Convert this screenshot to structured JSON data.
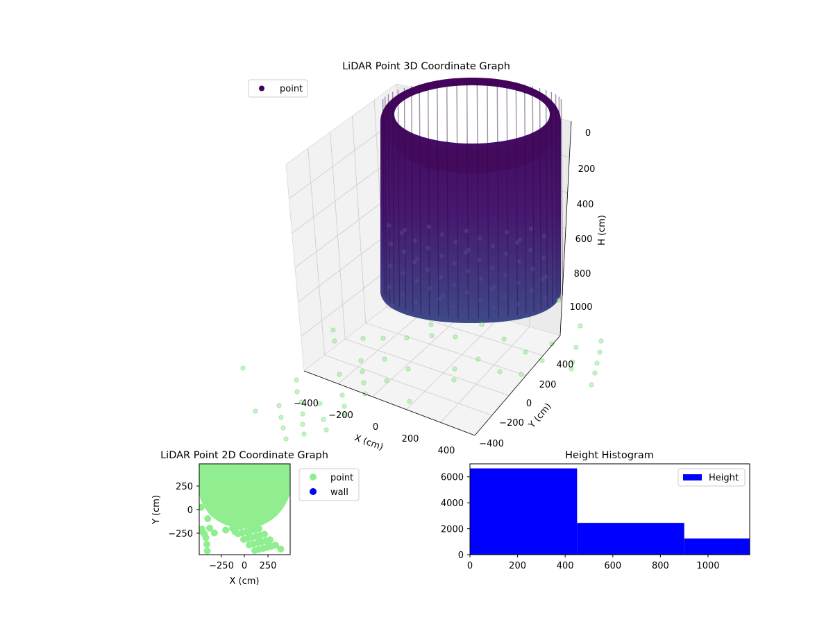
{
  "colors": {
    "point_3d_top": "#44015a",
    "point_3d_bottom": "#3e4a89",
    "floor_points": "#90ee90",
    "point_2d": "#90ee90",
    "wall_2d": "#0000ff",
    "histogram": "#0000ff"
  },
  "chart_data": [
    {
      "type": "scatter3d",
      "title": "LiDAR Point 3D Coordinate Graph",
      "xlabel": "X (cm)",
      "ylabel": "Y (cm)",
      "zlabel": "H (cm)",
      "xticks": [
        "−400",
        "−200",
        "0",
        "200",
        "400"
      ],
      "xtick_values": [
        -400,
        -200,
        0,
        200,
        400
      ],
      "yticks": [
        "−400",
        "−200",
        "0",
        "200",
        "400"
      ],
      "ytick_values": [
        -400,
        -200,
        0,
        200,
        400
      ],
      "zticks": [
        "0",
        "200",
        "400",
        "600",
        "800",
        "1000"
      ],
      "ztick_values": [
        0,
        200,
        400,
        600,
        800,
        1000
      ],
      "zlim": [
        1150,
        -50
      ],
      "z_axis_inverted": true,
      "legend": [
        "point"
      ],
      "legend_position": "upper-left",
      "grid": true,
      "series": [
        {
          "name": "point",
          "shape": "cylinder",
          "center_x": 0,
          "center_y": 0,
          "radius": 450,
          "h_min": 0,
          "h_max": 1150
        }
      ]
    },
    {
      "type": "scatter",
      "title": "LiDAR Point 2D Coordinate Graph",
      "xlabel": "X (cm)",
      "ylabel": "Y (cm)",
      "xticks": [
        "−250",
        "0",
        "250"
      ],
      "xtick_values": [
        -250,
        0,
        250
      ],
      "yticks": [
        "250",
        "0",
        "−250"
      ],
      "ytick_values": [
        250,
        0,
        -250
      ],
      "xlim": [
        -480,
        480
      ],
      "ylim": [
        -480,
        480
      ],
      "legend": [
        "point",
        "wall"
      ],
      "legend_position": "outside-right",
      "series": [
        {
          "name": "point",
          "color": "#90ee90",
          "x": [
            -460,
            -450,
            -445,
            -425,
            -410,
            -400,
            -395,
            -390,
            -370,
            -320,
            -200,
            -100,
            50,
            150,
            250,
            320,
            380
          ],
          "y": [
            20,
            -210,
            -240,
            -260,
            -300,
            -370,
            -440,
            -100,
            -200,
            -250,
            -220,
            -240,
            -300,
            -330,
            -350,
            -380,
            -420
          ]
        },
        {
          "name": "wall",
          "color": "#0000ff",
          "x": [],
          "y": []
        }
      ]
    },
    {
      "type": "bar",
      "title": "Height Histogram",
      "xticks": [
        "0",
        "200",
        "400",
        "600",
        "800",
        "1000"
      ],
      "xtick_values": [
        0,
        200,
        400,
        600,
        800,
        1000
      ],
      "yticks": [
        "0",
        "2000",
        "4000",
        "6000"
      ],
      "ytick_values": [
        0,
        2000,
        4000,
        6000
      ],
      "xlim": [
        0,
        1175
      ],
      "ylim": [
        0,
        7000
      ],
      "legend": [
        "Height"
      ],
      "legend_position": "upper-right",
      "bins": [
        {
          "start": 0,
          "end": 450,
          "count": 6650
        },
        {
          "start": 450,
          "end": 900,
          "count": 2450
        },
        {
          "start": 900,
          "end": 1175,
          "count": 1250
        }
      ]
    }
  ]
}
